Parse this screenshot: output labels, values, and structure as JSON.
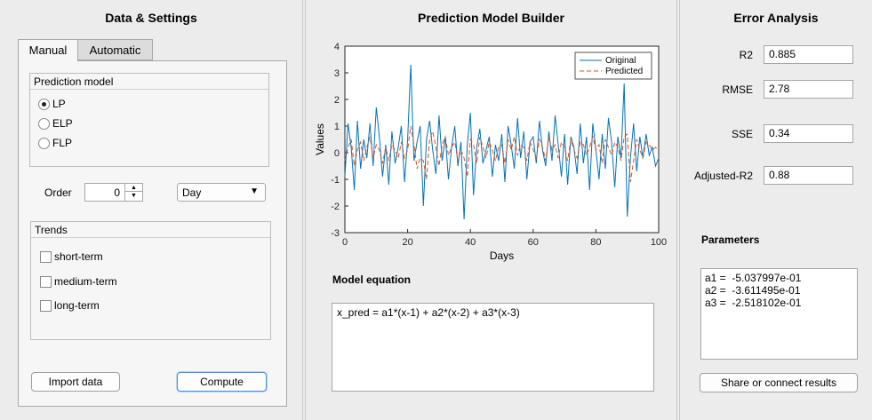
{
  "left_panel": {
    "title": "Data & Settings",
    "tabs": [
      {
        "label": "Manual"
      },
      {
        "label": "Automatic"
      }
    ],
    "prediction_model": {
      "title": "Prediction model",
      "options": [
        {
          "label": "LP",
          "selected": true
        },
        {
          "label": "ELP",
          "selected": false
        },
        {
          "label": "FLP",
          "selected": false
        }
      ]
    },
    "order": {
      "label": "Order",
      "value": "0"
    },
    "period": {
      "value": "Day"
    },
    "trends": {
      "title": "Trends",
      "options": [
        {
          "label": "short-term",
          "checked": false
        },
        {
          "label": "medium-term",
          "checked": false
        },
        {
          "label": "long-term",
          "checked": false
        }
      ]
    },
    "import_label": "Import data",
    "compute_label": "Compute"
  },
  "middle_panel": {
    "title": "Prediction Model Builder",
    "equation_title": "Model equation",
    "equation": "x_pred = a1*(x-1) + a2*(x-2) + a3*(x-3)"
  },
  "right_panel": {
    "title": "Error Analysis",
    "metrics": [
      {
        "label": "R2",
        "value": "0.885"
      },
      {
        "label": "RMSE",
        "value": "2.78"
      },
      {
        "label": "SSE",
        "value": "0.34"
      },
      {
        "label": "Adjusted-R2",
        "value": "0.88"
      }
    ],
    "parameters_title": "Parameters",
    "parameters": [
      "a1 =  -5.037997e-01",
      "a2 =  -3.611495e-01",
      "a3 =  -2.518102e-01"
    ],
    "share_label": "Share or connect results"
  },
  "chart_data": {
    "type": "line",
    "xlabel": "Days",
    "ylabel": "Values",
    "xlim": [
      0,
      100
    ],
    "ylim": [
      -3,
      4
    ],
    "xticks": [
      0,
      20,
      40,
      60,
      80,
      100
    ],
    "yticks": [
      -3,
      -2,
      -1,
      0,
      1,
      2,
      3,
      4
    ],
    "legend_position": "top-right",
    "series": [
      {
        "name": "Original",
        "color": "#0072bd",
        "x": [
          0,
          1,
          2,
          3,
          4,
          5,
          6,
          7,
          8,
          9,
          10,
          11,
          12,
          13,
          14,
          15,
          16,
          17,
          18,
          19,
          20,
          21,
          22,
          23,
          24,
          25,
          26,
          27,
          28,
          29,
          30,
          31,
          32,
          33,
          34,
          35,
          36,
          37,
          38,
          39,
          40,
          41,
          42,
          43,
          44,
          45,
          46,
          47,
          48,
          49,
          50,
          51,
          52,
          53,
          54,
          55,
          56,
          57,
          58,
          59,
          60,
          61,
          62,
          63,
          64,
          65,
          66,
          67,
          68,
          69,
          70,
          71,
          72,
          73,
          74,
          75,
          76,
          77,
          78,
          79,
          80,
          81,
          82,
          83,
          84,
          85,
          86,
          87,
          88,
          89,
          90,
          91,
          92,
          93,
          94,
          95,
          96,
          97,
          98,
          99,
          100
        ],
        "values": [
          -0.9,
          1.1,
          0.2,
          -1.4,
          1.2,
          -0.6,
          0.5,
          -0.2,
          1.1,
          -0.5,
          1.7,
          0.6,
          -0.9,
          0.3,
          -1.2,
          0.8,
          -0.4,
          0.2,
          1.0,
          -1.1,
          0.5,
          3.3,
          -0.3,
          0.4,
          1.0,
          -2.0,
          0.5,
          1.2,
          0.1,
          -0.8,
          1.4,
          -0.3,
          0.6,
          -1.0,
          0.2,
          1.0,
          -0.5,
          0.4,
          -2.5,
          0.3,
          1.5,
          -1.6,
          0.2,
          0.9,
          -0.4,
          0.1,
          0.6,
          -0.9,
          0.3,
          -0.3,
          0.7,
          -1.1,
          1.0,
          0.3,
          -0.6,
          1.3,
          -0.2,
          0.8,
          -1.0,
          0.4,
          0.6,
          -0.4,
          1.2,
          0.1,
          -0.5,
          0.8,
          -0.3,
          1.4,
          0.3,
          -0.9,
          0.7,
          -1.2,
          0.6,
          0.2,
          -0.8,
          1.1,
          -0.4,
          0.6,
          -1.4,
          1.1,
          0.1,
          -1.0,
          0.7,
          -0.6,
          1.3,
          0.4,
          -1.3,
          0.6,
          -0.2,
          2.6,
          -2.4,
          -0.2,
          1.1,
          -0.7,
          0.6,
          -0.2,
          0.7,
          -0.1,
          0.2,
          -0.5,
          -0.2
        ]
      },
      {
        "name": "Predicted",
        "color": "#d95319",
        "dashed": true,
        "x": [
          0,
          1,
          2,
          3,
          4,
          5,
          6,
          7,
          8,
          9,
          10,
          11,
          12,
          13,
          14,
          15,
          16,
          17,
          18,
          19,
          20,
          21,
          22,
          23,
          24,
          25,
          26,
          27,
          28,
          29,
          30,
          31,
          32,
          33,
          34,
          35,
          36,
          37,
          38,
          39,
          40,
          41,
          42,
          43,
          44,
          45,
          46,
          47,
          48,
          49,
          50,
          51,
          52,
          53,
          54,
          55,
          56,
          57,
          58,
          59,
          60,
          61,
          62,
          63,
          64,
          65,
          66,
          67,
          68,
          69,
          70,
          71,
          72,
          73,
          74,
          75,
          76,
          77,
          78,
          79,
          80,
          81,
          82,
          83,
          84,
          85,
          86,
          87,
          88,
          89,
          90,
          91,
          92,
          93,
          94,
          95,
          96,
          97,
          98,
          99,
          100
        ],
        "values": [
          -0.3,
          0.2,
          0.5,
          -0.5,
          0.1,
          0.4,
          -0.3,
          0.2,
          0.6,
          -0.2,
          0.3,
          0.1,
          -0.4,
          0.2,
          -0.3,
          0.3,
          0.1,
          -0.2,
          0.4,
          -0.2,
          0.1,
          1.0,
          0.3,
          -0.6,
          -0.2,
          -0.3,
          -1.0,
          0.5,
          0.8,
          0.2,
          -0.5,
          0.3,
          0.6,
          -0.1,
          0.2,
          0.4,
          -0.3,
          0.1,
          -0.2,
          -0.9,
          0.5,
          0.3,
          -0.4,
          0.6,
          0.2,
          -0.2,
          0.4,
          0.1,
          -0.3,
          0.2,
          0.3,
          -0.4,
          0.5,
          0.1,
          0.6,
          -0.1,
          0.3,
          0.2,
          -0.3,
          0.4,
          0.1,
          -0.2,
          0.5,
          0.2,
          -0.3,
          0.6,
          0.1,
          0.3,
          -0.2,
          0.4,
          0.2,
          -0.3,
          0.5,
          0.1,
          -0.2,
          0.4,
          0.3,
          -0.1,
          0.2,
          0.6,
          0.1,
          0.3,
          -0.4,
          0.5,
          0.2,
          -0.1,
          0.4,
          0.2,
          -0.3,
          0.6,
          0.7,
          -1.1,
          -0.3,
          0.5,
          0.1,
          -0.2,
          0.4,
          0.3,
          0.1,
          0.2,
          0.1
        ]
      }
    ]
  }
}
